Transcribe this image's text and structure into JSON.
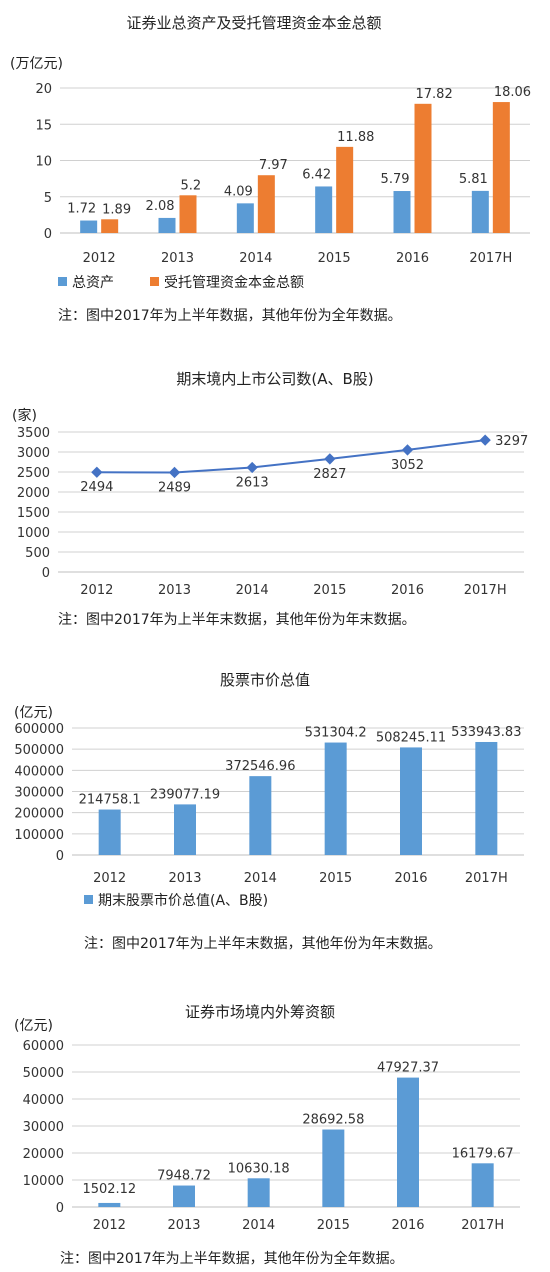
{
  "chart_data": [
    {
      "type": "bar",
      "title": "证券业总资产及受托管理资金本金总额",
      "unit_label": "(万亿元)",
      "categories": [
        "2012",
        "2013",
        "2014",
        "2015",
        "2016",
        "2017H"
      ],
      "yticks": [
        "0",
        "5",
        "10",
        "15",
        "20"
      ],
      "ylim": [
        0,
        20
      ],
      "grid": true,
      "legend_position": "bottom",
      "series": [
        {
          "name": "总资产",
          "color": "#5b9bd5",
          "values": [
            1.72,
            2.08,
            4.09,
            6.42,
            5.79,
            5.81
          ],
          "labels": [
            "1.72",
            "2.08",
            "4.09",
            "6.42",
            "5.79",
            "5.81"
          ]
        },
        {
          "name": "受托管理资金本金总额",
          "color": "#ed7d31",
          "values": [
            1.89,
            5.2,
            7.97,
            11.88,
            17.82,
            18.06
          ],
          "labels": [
            "1.89",
            "5.2",
            "7.97",
            "11.88",
            "17.82",
            "18.06"
          ]
        }
      ],
      "note": "注：图中2017年为上半年数据，其他年份为全年数据。"
    },
    {
      "type": "line",
      "title": "期末境内上市公司数(A、B股)",
      "unit_label": "(家)",
      "categories": [
        "2012",
        "2013",
        "2014",
        "2015",
        "2016",
        "2017H"
      ],
      "yticks": [
        "0",
        "500",
        "1000",
        "1500",
        "2000",
        "2500",
        "3000",
        "3500"
      ],
      "ylim": [
        0,
        3500
      ],
      "grid": true,
      "series": [
        {
          "color": "#4472c4",
          "values": [
            2494,
            2489,
            2613,
            2827,
            3052,
            3297
          ],
          "labels": [
            "2494",
            "2489",
            "2613",
            "2827",
            "3052",
            "3297"
          ]
        }
      ],
      "note": "注：图中2017年为上半年末数据，其他年份为年末数据。"
    },
    {
      "type": "bar",
      "title": "股票市价总值",
      "unit_label": "(亿元)",
      "categories": [
        "2012",
        "2013",
        "2014",
        "2015",
        "2016",
        "2017H"
      ],
      "yticks": [
        "0",
        "100000",
        "200000",
        "300000",
        "400000",
        "500000",
        "600000"
      ],
      "ylim": [
        0,
        600000
      ],
      "grid": true,
      "legend_position": "bottom",
      "series": [
        {
          "name": "期末股票市价总值(A、B股)",
          "color": "#5b9bd5",
          "values": [
            214758.1,
            239077.19,
            372546.96,
            531304.2,
            508245.11,
            533943.83
          ],
          "labels": [
            "214758.1",
            "239077.19",
            "372546.96",
            "531304.2",
            "508245.11",
            "533943.83"
          ]
        }
      ],
      "note": "注：图中2017年为上半年末数据，其他年份为年末数据。"
    },
    {
      "type": "bar",
      "title": "证券市场境内外筹资额",
      "unit_label": "(亿元)",
      "categories": [
        "2012",
        "2013",
        "2014",
        "2015",
        "2016",
        "2017H"
      ],
      "yticks": [
        "0",
        "10000",
        "20000",
        "30000",
        "40000",
        "50000",
        "60000"
      ],
      "ylim": [
        0,
        60000
      ],
      "grid": true,
      "series": [
        {
          "color": "#5b9bd5",
          "values": [
            1502.12,
            7948.72,
            10630.18,
            28692.58,
            47927.37,
            16179.67
          ],
          "labels": [
            "1502.12",
            "7948.72",
            "10630.18",
            "28692.58",
            "47927.37",
            "16179.67"
          ]
        }
      ],
      "note": "注：图中2017年为上半年数据，其他年份为全年数据。"
    }
  ]
}
